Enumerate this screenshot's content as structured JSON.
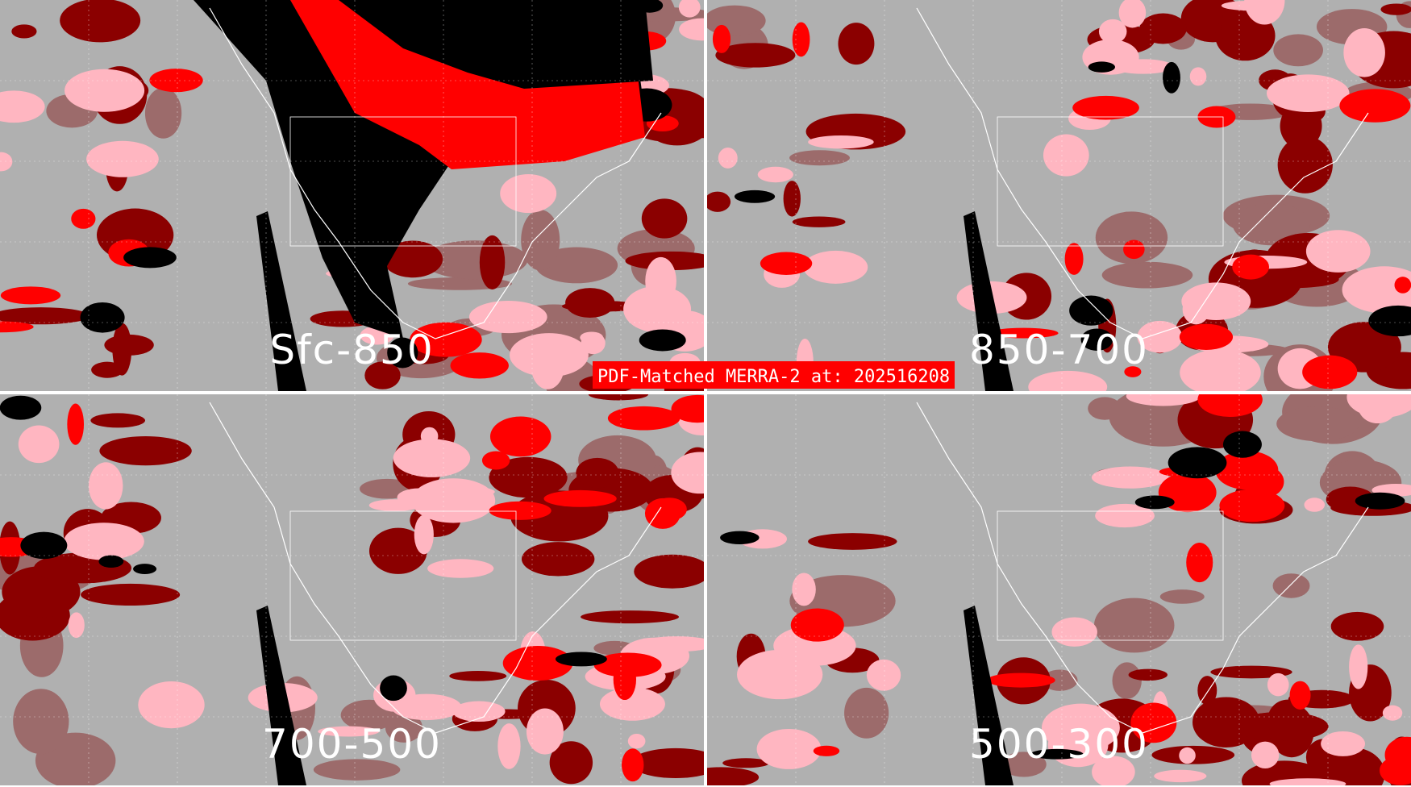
{
  "title": "PDF-Matched MERRA-2 at: 202516208",
  "panels": [
    {
      "label": "Sfc-850"
    },
    {
      "label": "850-700"
    },
    {
      "label": "700-500"
    },
    {
      "label": "500-300"
    }
  ],
  "colors": {
    "background": "#b0b0b0",
    "dark_red": "#8b0000",
    "pink": "#ffb6c1",
    "red": "#ff0000",
    "black": "#000000",
    "muted_red": "#9c6b6b",
    "outlines": "#ffffff"
  }
}
